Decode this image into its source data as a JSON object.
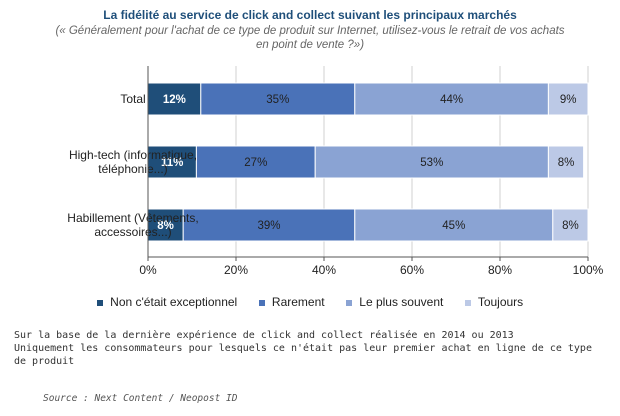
{
  "title": "La fidélité au service de click and collect suivant les principaux marchés",
  "subtitle_lines": [
    "(« Généralement pour l'achat de ce type de produit sur Internet, utilisez-vous le retrait de vos achats",
    "en point de vente ?»)"
  ],
  "colors": {
    "series": [
      "#1f4e79",
      "#4a72b8",
      "#8aa3d3",
      "#bcc9e6"
    ],
    "grid": "#d0d0d0",
    "axis": "#555555"
  },
  "chart_data": {
    "type": "bar",
    "orientation": "horizontal",
    "stacked": true,
    "categories": [
      [
        "Total"
      ],
      [
        "High-tech (informatique,",
        "téléphonie...)"
      ],
      [
        "Habillement (Vêtements,",
        "accessoires...)"
      ]
    ],
    "series": [
      {
        "name": "Non c'était exceptionnel",
        "values": [
          12,
          11,
          8
        ],
        "labels": [
          "12%",
          "11%",
          "8%"
        ]
      },
      {
        "name": "Rarement",
        "values": [
          35,
          27,
          39
        ],
        "labels": [
          "35%",
          "27%",
          "39%"
        ]
      },
      {
        "name": "Le plus souvent",
        "values": [
          44,
          53,
          45
        ],
        "labels": [
          "44%",
          "53%",
          "45%"
        ]
      },
      {
        "name": "Toujours",
        "values": [
          9,
          8,
          8
        ],
        "labels": [
          "9%",
          "8%",
          "8%"
        ]
      }
    ],
    "xlim": [
      0,
      100
    ],
    "x_ticks": [
      0,
      20,
      40,
      60,
      80,
      100
    ],
    "x_tick_labels": [
      "0%",
      "20%",
      "40%",
      "60%",
      "80%",
      "100%"
    ],
    "grid": true,
    "legend_position": "bottom"
  },
  "notes": [
    "Sur la base de la dernière expérience de click and collect réalisée en 2014 ou 2013",
    "Uniquement les consommateurs pour lesquels ce n'était pas leur premier achat en ligne de ce type",
    "de produit"
  ],
  "source": "Source : Next Content / Neopost ID"
}
